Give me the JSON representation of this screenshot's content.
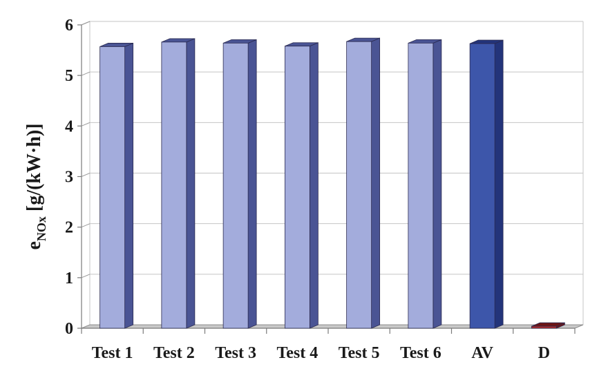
{
  "chart_data": {
    "type": "bar",
    "categories": [
      "Test 1",
      "Test 2",
      "Test 3",
      "Test 4",
      "Test 5",
      "Test 6",
      "AV",
      "D"
    ],
    "values": [
      5.57,
      5.66,
      5.64,
      5.58,
      5.67,
      5.64,
      5.63,
      0.04
    ],
    "ylabel_main": "e",
    "ylabel_sub": "NOx",
    "ylabel_unit": " [g/(kW·h)]",
    "ylim": [
      0,
      6
    ],
    "yticks": [
      "0",
      "1",
      "2",
      "3",
      "4",
      "5",
      "6"
    ],
    "grid": true,
    "style": "3d",
    "colors": {
      "test_front": "#a3acdc",
      "test_side": "#4a5494",
      "av_front": "#3d56aa",
      "av_side": "#23347a",
      "d_front": "#b02c2c",
      "d_side": "#6e1414"
    }
  }
}
